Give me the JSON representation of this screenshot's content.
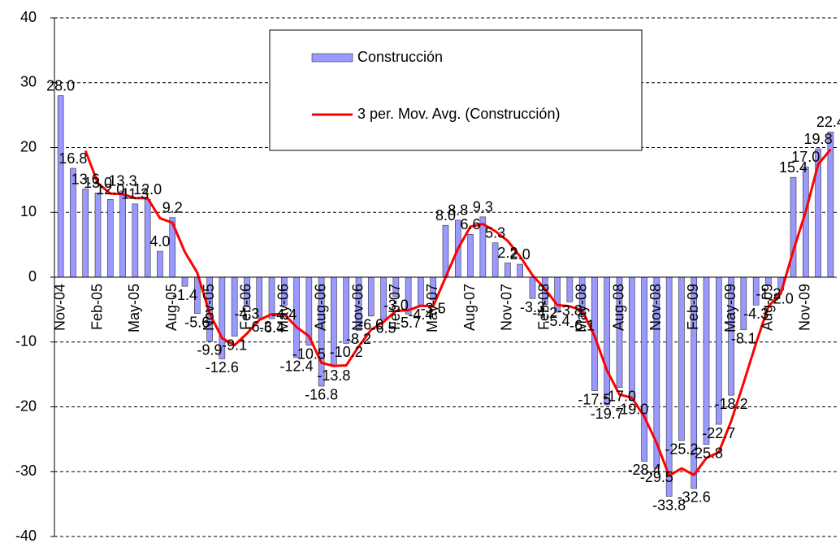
{
  "chart_data": {
    "type": "bar",
    "categories": [
      "Nov-04",
      null,
      null,
      "Feb-05",
      null,
      null,
      "May-05",
      null,
      null,
      "Aug-05",
      null,
      null,
      "Nov-05",
      null,
      null,
      "Feb-06",
      null,
      null,
      "May-06",
      null,
      null,
      "Aug-06",
      null,
      null,
      "Nov-06",
      null,
      null,
      "Feb-07",
      null,
      null,
      "May-07",
      null,
      null,
      "Aug-07",
      null,
      null,
      "Nov-07",
      null,
      null,
      "Feb-08",
      null,
      null,
      "May-08",
      null,
      null,
      "Aug-08",
      null,
      null,
      "Nov-08",
      null,
      null,
      "Feb-09",
      null,
      null,
      "May-09",
      null,
      null,
      "Aug-09",
      null,
      null,
      "Nov-09",
      null,
      null
    ],
    "series": [
      {
        "name": "Construcción",
        "color": "#9999ff",
        "values": [
          28.0,
          16.8,
          13.6,
          13.0,
          12.0,
          13.3,
          11.3,
          12.0,
          4.0,
          9.2,
          -1.4,
          -5.6,
          -9.9,
          -12.6,
          -9.1,
          -4.3,
          -6.3,
          -6.4,
          -4.4,
          -12.4,
          -10.5,
          -16.8,
          -13.8,
          -10.2,
          -8.2,
          -6.0,
          -6.5,
          -3.0,
          -5.7,
          -4.4,
          -3.5,
          8.0,
          8.8,
          6.6,
          9.3,
          5.3,
          2.2,
          2.0,
          -3.3,
          -4.2,
          -5.4,
          -3.8,
          -6.1,
          -17.5,
          -19.7,
          -17.0,
          -19.0,
          -28.4,
          -29.5,
          -33.8,
          -25.2,
          -32.6,
          -25.8,
          -22.7,
          -18.2,
          -8.1,
          -4.3,
          -1.2,
          -2.0,
          15.4,
          17.0,
          19.8,
          22.4
        ],
        "value_labels": [
          "28.0",
          "16.8",
          "13.6",
          "13.0",
          "12.0",
          "13.3",
          "11.3",
          "12.0",
          "4.0",
          "9.2",
          "-1.4",
          "-5.6",
          "-9.9",
          "-12.6",
          "-9.1",
          "-4.3",
          "-6.3",
          "-6.4",
          "-4.4",
          "-12.4",
          "-10.5",
          "-16.8",
          "-13.8",
          "-10.2",
          "-8.2",
          "-6.0",
          "-6.5",
          "-3.0",
          "-5.7",
          "-4.4",
          "-3.5",
          "8.0",
          "8.8",
          "6.6",
          "9.3",
          "5.3",
          "2.2",
          "2.0",
          "-3.3",
          "-4.2",
          "-5.4",
          "-3.8",
          "-6.1",
          "-17.5",
          "-19.7",
          "-17.0",
          "-19.0",
          "-28.4",
          "-29.5",
          "-33.8",
          "-25.2",
          "-32.6",
          "-25.8",
          "-22.7",
          "-18.2",
          "-8.1",
          "-4.3",
          "-1.2",
          "-2.0",
          "15.4",
          "17.0",
          "19.8",
          "22.4"
        ]
      },
      {
        "name": "3 per. Mov. Avg. (Construcción)",
        "color": "#ff0000",
        "type": "line",
        "values": [
          null,
          null,
          19.5,
          14.5,
          12.9,
          12.8,
          12.2,
          12.2,
          9.1,
          8.4,
          3.9,
          0.7,
          -5.6,
          -9.4,
          -10.5,
          -8.7,
          -6.6,
          -5.7,
          -5.7,
          -7.7,
          -9.1,
          -13.2,
          -13.7,
          -13.6,
          -10.7,
          -8.1,
          -6.9,
          -5.2,
          -5.1,
          -4.4,
          -4.5,
          0.0,
          4.4,
          7.8,
          8.2,
          7.1,
          5.6,
          3.2,
          0.3,
          -1.8,
          -4.3,
          -4.5,
          -5.1,
          -9.1,
          -14.4,
          -18.1,
          -18.6,
          -21.5,
          -25.6,
          -30.6,
          -29.5,
          -30.5,
          -27.9,
          -27.0,
          -22.2,
          -16.3,
          -10.2,
          -4.5,
          -2.5,
          4.1,
          10.1,
          17.4,
          19.7
        ]
      }
    ],
    "ylim": [
      -40,
      40
    ],
    "yticks": [
      -40,
      -30,
      -20,
      -10,
      0,
      10,
      20,
      30,
      40
    ],
    "grid": true,
    "legend": "top-center"
  }
}
